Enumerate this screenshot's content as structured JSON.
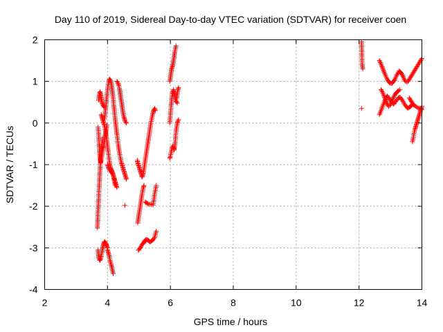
{
  "chart_data": {
    "type": "scatter",
    "title": "Day 110 of 2019, Sidereal Day-to-day VTEC variation (SDTVAR) for receiver coen",
    "xlabel": "GPS time / hours",
    "ylabel": "SDTVAR / TECUs",
    "xlim": [
      2,
      14
    ],
    "ylim": [
      -4,
      2
    ],
    "xticks": [
      2,
      4,
      6,
      8,
      10,
      12,
      14
    ],
    "yticks": [
      -4,
      -3,
      -2,
      -1,
      0,
      1,
      2
    ],
    "grid": true,
    "marker": "plus",
    "series_color": "#ff0000",
    "series": [
      {
        "name": "SDTVAR",
        "segments": [
          {
            "x": [
              3.72,
              3.73,
              3.74,
              3.75,
              3.76,
              3.77,
              3.78,
              3.79,
              3.8,
              3.81,
              3.82,
              3.84,
              3.86,
              3.88,
              3.9
            ],
            "y": [
              0.55,
              0.62,
              0.68,
              0.72,
              0.75,
              0.73,
              0.7,
              0.65,
              0.6,
              0.55,
              0.5,
              0.45,
              0.42,
              0.4,
              0.38
            ]
          },
          {
            "x": [
              3.7,
              3.71,
              3.72,
              3.73,
              3.74,
              3.75,
              3.76,
              3.78,
              3.8,
              3.82,
              3.84,
              3.86,
              3.88,
              3.9,
              3.92,
              3.94,
              3.96,
              3.98
            ],
            "y": [
              -0.1,
              -0.18,
              -0.3,
              -0.45,
              -0.6,
              -0.75,
              -0.85,
              -0.95,
              -0.9,
              -0.8,
              -0.7,
              -0.6,
              -0.55,
              -0.45,
              -0.35,
              -0.25,
              -0.15,
              -0.05
            ]
          },
          {
            "x": [
              3.68,
              3.69,
              3.7,
              3.71,
              3.72,
              3.73,
              3.74,
              3.75,
              3.76,
              3.77,
              3.78,
              3.79,
              3.8,
              3.81,
              3.82,
              3.84,
              3.86
            ],
            "y": [
              -2.52,
              -2.3,
              -2.1,
              -1.95,
              -1.8,
              -1.6,
              -1.45,
              -1.3,
              -1.15,
              -1.0,
              -0.9,
              -0.8,
              -0.7,
              -0.62,
              -0.55,
              -0.45,
              -0.35
            ]
          },
          {
            "x": [
              3.7,
              3.71,
              3.72,
              3.74,
              3.76,
              3.78,
              3.8,
              3.82,
              3.84,
              3.86,
              3.88,
              3.9,
              3.92,
              3.94,
              3.96,
              3.98,
              4.0
            ],
            "y": [
              -3.05,
              -3.15,
              -3.22,
              -3.28,
              -3.3,
              -3.26,
              -3.2,
              -3.12,
              -3.02,
              -2.95,
              -2.9,
              -2.86,
              -2.85,
              -2.88,
              -2.92,
              -2.96,
              -3.0
            ]
          },
          {
            "x": [
              4.0,
              4.02,
              4.04,
              4.06,
              4.08,
              4.1,
              4.12,
              4.14,
              4.16,
              4.18
            ],
            "y": [
              -3.05,
              -3.1,
              -3.15,
              -3.22,
              -3.3,
              -3.36,
              -3.42,
              -3.48,
              -3.55,
              -3.62
            ]
          },
          {
            "x": [
              3.8,
              3.82,
              3.84,
              3.86,
              3.88,
              3.9,
              3.92,
              3.94,
              3.96,
              3.98,
              4.0,
              4.02,
              4.04,
              4.06,
              4.08,
              4.1,
              4.12,
              4.14,
              4.16,
              4.18,
              4.2,
              4.22,
              4.24,
              4.26,
              4.28,
              4.3
            ],
            "y": [
              0.2,
              0.15,
              0.1,
              0.05,
              0.0,
              -0.05,
              -0.12,
              -0.2,
              -0.3,
              -0.42,
              -0.55,
              -0.68,
              -0.8,
              -0.92,
              -1.02,
              -1.08,
              -1.12,
              -1.16,
              -1.2,
              -1.25,
              -1.3,
              -1.35,
              -1.4,
              -1.45,
              -1.5,
              -1.55
            ]
          },
          {
            "x": [
              3.9,
              3.92,
              3.94,
              3.96,
              3.98,
              4.0,
              4.02,
              4.04,
              4.06,
              4.08,
              4.1,
              4.12,
              4.14,
              4.16,
              4.18,
              4.2,
              4.22,
              4.24,
              4.26,
              4.28,
              4.3,
              4.32,
              4.34,
              4.36,
              4.38,
              4.4,
              4.42,
              4.44,
              4.46,
              4.48,
              4.5,
              4.52,
              4.54,
              4.56,
              4.58,
              4.6
            ],
            "y": [
              0.1,
              0.2,
              0.35,
              0.5,
              0.65,
              0.8,
              0.92,
              1.0,
              1.05,
              1.05,
              1.02,
              0.95,
              0.85,
              0.72,
              0.58,
              0.42,
              0.28,
              0.12,
              -0.02,
              -0.15,
              -0.28,
              -0.4,
              -0.52,
              -0.62,
              -0.72,
              -0.8,
              -0.88,
              -0.95,
              -1.0,
              -1.05,
              -1.1,
              -1.15,
              -1.2,
              -1.25,
              -1.3,
              -1.35
            ]
          },
          {
            "x": [
              4.3,
              4.32,
              4.34,
              4.36,
              4.38,
              4.4,
              4.42,
              4.44,
              4.46,
              4.48,
              4.5,
              4.52,
              4.54,
              4.56,
              4.58,
              4.6
            ],
            "y": [
              1.0,
              0.98,
              0.95,
              0.9,
              0.82,
              0.72,
              0.62,
              0.52,
              0.42,
              0.32,
              0.22,
              0.15,
              0.1,
              0.05,
              0.02,
              0.0
            ]
          },
          {
            "x": [
              4.0,
              4.02,
              4.04,
              4.06,
              4.08,
              4.1,
              4.12,
              4.14,
              4.16,
              4.18,
              4.2,
              4.22,
              4.24
            ],
            "y": [
              -1.0,
              -1.05,
              -1.1,
              -1.12,
              -1.15,
              -1.15,
              -1.18,
              -1.2,
              -1.22,
              -1.25,
              -1.3,
              -1.4,
              -1.5
            ]
          },
          {
            "x": [
              4.55
            ],
            "y": [
              -1.98
            ]
          },
          {
            "x": [
              4.95,
              4.96,
              4.98,
              5.0,
              5.02,
              5.04,
              5.06,
              5.08,
              5.1,
              5.12,
              5.14,
              5.16,
              5.18,
              5.2,
              5.22,
              5.24,
              5.26,
              5.28,
              5.3
            ],
            "y": [
              -0.9,
              -0.95,
              -1.0,
              -1.05,
              -1.1,
              -1.15,
              -1.2,
              -1.25,
              -1.3,
              -1.25,
              -1.2,
              -1.1,
              -1.0,
              -0.9,
              -0.8,
              -0.7,
              -0.6,
              -0.5,
              -0.4
            ]
          },
          {
            "x": [
              5.3,
              5.32,
              5.34,
              5.36,
              5.38,
              5.4,
              5.42,
              5.44,
              5.46,
              5.48,
              5.5,
              5.52
            ],
            "y": [
              -0.4,
              -0.3,
              -0.2,
              -0.1,
              0.0,
              0.08,
              0.15,
              0.22,
              0.28,
              0.32,
              0.35,
              0.3
            ]
          },
          {
            "x": [
              4.96,
              4.98,
              5.0,
              5.02,
              5.04,
              5.06,
              5.08,
              5.1,
              5.12,
              5.14,
              5.16
            ],
            "y": [
              -2.4,
              -2.3,
              -2.2,
              -2.1,
              -2.0,
              -1.9,
              -1.8,
              -1.7,
              -1.62,
              -1.55,
              -1.5
            ]
          },
          {
            "x": [
              4.98,
              5.0,
              5.02,
              5.04,
              5.06,
              5.08,
              5.1,
              5.12,
              5.14,
              5.16,
              5.18,
              5.2,
              5.22
            ],
            "y": [
              -3.05,
              -3.05,
              -3.02,
              -3.0,
              -2.98,
              -2.95,
              -2.92,
              -2.9,
              -2.88,
              -2.86,
              -2.84,
              -2.82,
              -2.8
            ]
          },
          {
            "x": [
              5.2,
              5.25,
              5.3,
              5.35,
              5.4,
              5.45,
              5.5,
              5.55
            ],
            "y": [
              -2.85,
              -2.8,
              -2.82,
              -2.86,
              -2.84,
              -2.8,
              -2.75,
              -2.6
            ]
          },
          {
            "x": [
              5.2,
              5.25,
              5.3,
              5.35,
              5.4,
              5.45,
              5.5,
              5.55
            ],
            "y": [
              -1.9,
              -1.92,
              -1.95,
              -1.95,
              -1.96,
              -1.97,
              -1.7,
              -1.5
            ]
          },
          {
            "x": [
              5.98,
              6.0,
              6.02,
              6.04,
              6.06,
              6.08,
              6.1,
              6.12,
              6.14,
              6.16,
              6.18,
              6.2,
              6.22,
              6.24,
              6.26
            ],
            "y": [
              -0.85,
              -0.8,
              -0.72,
              -0.65,
              -0.58,
              -0.55,
              -0.6,
              -0.65,
              -0.55,
              -0.4,
              -0.2,
              -0.1,
              0.0,
              0.05,
              0.08
            ]
          },
          {
            "x": [
              5.98,
              6.0,
              6.02,
              6.04,
              6.06,
              6.08,
              6.1,
              6.12,
              6.14,
              6.16,
              6.18,
              6.2,
              6.22
            ],
            "y": [
              0.0,
              0.2,
              0.4,
              0.55,
              0.7,
              0.75,
              0.8,
              0.72,
              0.65,
              0.58,
              0.52,
              0.5,
              0.48
            ]
          },
          {
            "x": [
              5.98,
              6.0,
              6.02,
              6.04,
              6.06,
              6.08,
              6.1,
              6.12,
              6.14,
              6.16,
              6.18
            ],
            "y": [
              1.0,
              1.1,
              1.2,
              1.3,
              1.35,
              1.4,
              1.5,
              1.6,
              1.7,
              1.78,
              1.85
            ]
          },
          {
            "x": [
              6.2,
              6.22,
              6.24,
              6.26
            ],
            "y": [
              0.6,
              0.7,
              0.8,
              0.85
            ]
          },
          {
            "x": [
              12.08,
              12.1,
              12.12
            ],
            "y": [
              1.95,
              1.4,
              1.3
            ]
          },
          {
            "x": [
              12.08
            ],
            "y": [
              0.35
            ]
          },
          {
            "x": [
              12.65,
              12.68,
              12.72,
              12.76,
              12.8,
              12.84,
              12.88,
              12.92,
              12.96,
              13.0,
              13.04,
              13.08,
              13.12,
              13.16,
              13.2,
              13.24,
              13.28,
              13.32,
              13.36,
              13.4,
              13.44,
              13.48,
              13.52,
              13.56,
              13.6,
              13.64,
              13.68,
              13.72,
              13.76,
              13.8,
              13.84,
              13.88,
              13.92,
              13.96,
              14.0
            ],
            "y": [
              1.5,
              1.45,
              1.38,
              1.3,
              1.22,
              1.15,
              1.08,
              1.02,
              0.98,
              0.95,
              0.95,
              0.98,
              1.02,
              1.08,
              1.15,
              1.2,
              1.25,
              1.22,
              1.18,
              1.12,
              1.05,
              1.0,
              0.98,
              1.0,
              1.05,
              1.1,
              1.15,
              1.2,
              1.25,
              1.3,
              1.35,
              1.4,
              1.45,
              1.5,
              1.55
            ]
          },
          {
            "x": [
              12.65,
              12.7,
              12.75,
              12.8,
              12.85,
              12.9,
              12.95,
              13.0,
              13.05,
              13.1,
              13.15,
              13.2,
              13.25,
              13.3,
              13.35,
              13.4,
              13.45,
              13.5,
              13.55,
              13.6,
              13.65,
              13.7
            ],
            "y": [
              0.2,
              0.3,
              0.4,
              0.5,
              0.6,
              0.65,
              0.6,
              0.55,
              0.5,
              0.45,
              0.5,
              0.55,
              0.6,
              0.62,
              0.58,
              0.52,
              0.45,
              0.4,
              0.35,
              0.38,
              0.4,
              0.45
            ]
          },
          {
            "x": [
              12.7,
              12.74,
              12.78,
              12.82,
              12.86,
              12.9,
              12.94,
              12.98,
              13.02,
              13.06,
              13.1,
              13.14,
              13.18,
              13.22,
              13.26,
              13.3
            ],
            "y": [
              0.8,
              0.75,
              0.68,
              0.6,
              0.52,
              0.45,
              0.4,
              0.42,
              0.48,
              0.55,
              0.62,
              0.68,
              0.72,
              0.75,
              0.78,
              0.8
            ]
          },
          {
            "x": [
              13.7,
              13.72,
              13.74,
              13.76,
              13.78,
              13.8,
              13.82,
              13.84,
              13.86,
              13.88,
              13.9,
              13.92,
              13.94,
              13.96,
              13.98,
              14.0
            ],
            "y": [
              -0.45,
              -0.38,
              -0.3,
              -0.22,
              -0.15,
              -0.1,
              -0.05,
              0.0,
              0.05,
              0.1,
              0.15,
              0.2,
              0.25,
              0.3,
              0.35,
              0.4
            ]
          },
          {
            "x": [
              13.6,
              13.64,
              13.68,
              13.72,
              13.76,
              13.8,
              13.84,
              13.88,
              13.92,
              13.96,
              14.0
            ],
            "y": [
              0.6,
              0.55,
              0.5,
              0.45,
              0.42,
              0.4,
              0.38,
              0.36,
              0.35,
              0.34,
              0.33
            ]
          }
        ]
      }
    ]
  }
}
